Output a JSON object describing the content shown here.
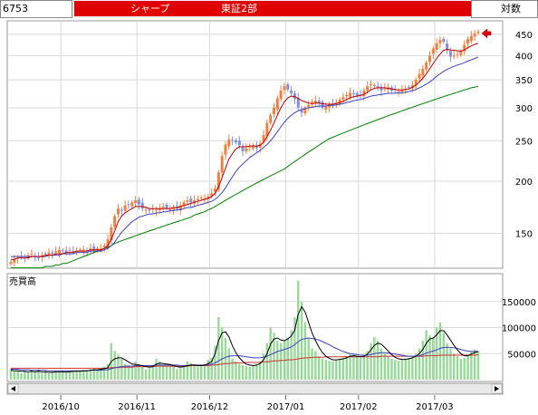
{
  "header": {
    "code": "6753",
    "name": "シャープ",
    "market": "東証2部",
    "scale": "対数"
  },
  "colors": {
    "banner": "#e00000",
    "ma_short": "#c00000",
    "ma_mid": "#4040c0",
    "ma_long": "#008000",
    "volume": "#98d898",
    "candle_up": "#f08040",
    "candle_down": "#8090e0",
    "vol_ma_long": "#cc3030"
  },
  "chart_data": [
    {
      "type": "candlestick",
      "scale": "log",
      "ylim": [
        125,
        480
      ],
      "yticks": [
        150,
        200,
        250,
        300,
        350,
        400,
        450
      ],
      "x_labels": [
        "2016/10",
        "2016/11",
        "2016/12",
        "2017/01",
        "2017/02",
        "2017/03"
      ],
      "legend": [],
      "close_series": [
        128,
        130,
        131,
        132,
        131,
        133,
        134,
        132,
        131,
        133,
        134,
        135,
        134,
        136,
        137,
        136,
        135,
        137,
        136,
        136,
        137,
        137,
        136,
        138,
        137,
        138,
        138,
        140,
        145,
        155,
        165,
        172,
        170,
        175,
        176,
        178,
        180,
        176,
        172,
        171,
        170,
        172,
        171,
        172,
        174,
        172,
        171,
        173,
        172,
        175,
        178,
        180,
        178,
        180,
        181,
        183,
        182,
        184,
        187,
        192,
        210,
        230,
        245,
        252,
        250,
        248,
        244,
        236,
        240,
        242,
        244,
        240,
        246,
        258,
        276,
        288,
        300,
        316,
        330,
        338,
        332,
        325,
        315,
        300,
        292,
        300,
        305,
        310,
        312,
        308,
        300,
        302,
        306,
        304,
        309,
        314,
        318,
        322,
        326,
        324,
        320,
        322,
        330,
        338,
        342,
        340,
        336,
        330,
        334,
        336,
        330,
        332,
        329,
        331,
        333,
        336,
        340,
        350,
        362,
        372,
        385,
        400,
        416,
        428,
        436,
        432,
        412,
        398,
        400,
        404,
        410,
        425,
        438,
        446,
        452,
        457
      ],
      "ma_short": [
        130,
        130,
        131,
        131,
        131,
        131,
        132,
        132,
        132,
        132,
        133,
        133,
        133,
        134,
        134,
        134,
        135,
        135,
        135,
        136,
        136,
        136,
        136,
        137,
        137,
        137,
        137,
        138,
        140,
        145,
        152,
        160,
        165,
        168,
        170,
        172,
        174,
        174,
        174,
        173,
        172,
        172,
        172,
        172,
        172,
        172,
        172,
        173,
        173,
        174,
        175,
        176,
        177,
        178,
        179,
        180,
        181,
        182,
        184,
        187,
        194,
        204,
        215,
        226,
        233,
        239,
        242,
        242,
        242,
        243,
        243,
        243,
        244,
        248,
        256,
        265,
        276,
        288,
        300,
        310,
        317,
        320,
        319,
        316,
        312,
        310,
        308,
        307,
        308,
        308,
        307,
        306,
        306,
        306,
        307,
        309,
        311,
        314,
        317,
        319,
        320,
        321,
        323,
        327,
        331,
        334,
        335,
        335,
        335,
        334,
        333,
        332,
        331,
        331,
        332,
        333,
        336,
        340,
        346,
        353,
        362,
        372,
        383,
        394,
        404,
        412,
        414,
        413,
        412,
        411,
        410,
        413,
        418,
        422,
        426,
        428
      ],
      "ma_mid": [
        132,
        132,
        132,
        132,
        132,
        132,
        132,
        132,
        132,
        132,
        132,
        133,
        133,
        133,
        133,
        134,
        134,
        134,
        134,
        135,
        135,
        135,
        135,
        136,
        136,
        136,
        136,
        137,
        138,
        140,
        143,
        147,
        151,
        154,
        157,
        160,
        162,
        164,
        165,
        166,
        167,
        167,
        168,
        168,
        169,
        169,
        170,
        170,
        171,
        171,
        172,
        173,
        173,
        174,
        175,
        176,
        177,
        178,
        179,
        181,
        184,
        188,
        193,
        199,
        205,
        211,
        216,
        220,
        224,
        228,
        231,
        234,
        237,
        241,
        245,
        250,
        256,
        263,
        270,
        277,
        283,
        288,
        292,
        295,
        297,
        299,
        300,
        301,
        302,
        303,
        303,
        303,
        304,
        304,
        305,
        306,
        307,
        309,
        310,
        312,
        313,
        314,
        316,
        318,
        320,
        321,
        322,
        323,
        324,
        325,
        325,
        325,
        326,
        326,
        327,
        328,
        330,
        332,
        335,
        338,
        342,
        346,
        351,
        357,
        362,
        367,
        371,
        374,
        377,
        380,
        382,
        385,
        388,
        391,
        394,
        397
      ],
      "ma_long": [
        124,
        124,
        124,
        124,
        124,
        124,
        124,
        124,
        124,
        124,
        125,
        125,
        125,
        126,
        126,
        127,
        127,
        128,
        129,
        130,
        131,
        132,
        133,
        134,
        135,
        136,
        137,
        138,
        139,
        140,
        142,
        143,
        144,
        145,
        146,
        147,
        148,
        149,
        150,
        151,
        152,
        153,
        154,
        155,
        156,
        157,
        158,
        159,
        160,
        161,
        162,
        163,
        164,
        166,
        167,
        168,
        169,
        171,
        172,
        174,
        176,
        178,
        180,
        182,
        184,
        186,
        188,
        190,
        192,
        194,
        196,
        198,
        200,
        202,
        204,
        206,
        208,
        210,
        212,
        214,
        217,
        220,
        223,
        226,
        229,
        232,
        235,
        238,
        241,
        244,
        247,
        250,
        253,
        255,
        257,
        259,
        261,
        263,
        265,
        267,
        269,
        271,
        273,
        275,
        277,
        279,
        281,
        283,
        285,
        287,
        289,
        291,
        293,
        295,
        297,
        299,
        301,
        303,
        305,
        307,
        309,
        311,
        313,
        315,
        317,
        319,
        321,
        323,
        325,
        327,
        329,
        331,
        333,
        335,
        336,
        338
      ]
    },
    {
      "type": "bar",
      "title": "売買高",
      "ylim": [
        0,
        200000
      ],
      "yticks": [
        50000,
        100000,
        150000
      ],
      "values": [
        20000,
        15000,
        18000,
        12000,
        16000,
        14000,
        18000,
        15000,
        20000,
        13000,
        17000,
        12000,
        15000,
        16000,
        14000,
        18000,
        16000,
        15000,
        17000,
        18000,
        16000,
        19000,
        18000,
        20000,
        21000,
        19000,
        22000,
        25000,
        30000,
        70000,
        55000,
        48000,
        40000,
        30000,
        28000,
        25000,
        35000,
        30000,
        28000,
        20000,
        22000,
        25000,
        40000,
        35000,
        28000,
        26000,
        30000,
        25000,
        20000,
        22000,
        28000,
        35000,
        32000,
        30000,
        25000,
        28000,
        30000,
        38000,
        42000,
        65000,
        120000,
        100000,
        80000,
        60000,
        40000,
        35000,
        30000,
        28000,
        26000,
        25000,
        27000,
        30000,
        35000,
        50000,
        70000,
        100000,
        90000,
        75000,
        70000,
        75000,
        80000,
        95000,
        120000,
        190000,
        150000,
        110000,
        80000,
        60000,
        55000,
        45000,
        40000,
        38000,
        36000,
        35000,
        38000,
        40000,
        42000,
        45000,
        50000,
        48000,
        44000,
        42000,
        45000,
        55000,
        70000,
        82000,
        75000,
        60000,
        50000,
        45000,
        40000,
        38000,
        36000,
        38000,
        40000,
        42000,
        45000,
        50000,
        60000,
        75000,
        95000,
        85000,
        80000,
        100000,
        110000,
        90000,
        70000,
        60000,
        50000,
        45000,
        40000,
        42000,
        48000,
        55000,
        58000,
        55000
      ],
      "ma_fast": [
        18000,
        17000,
        17000,
        16000,
        16000,
        15000,
        16000,
        15000,
        16000,
        15000,
        15000,
        14000,
        14000,
        15000,
        15000,
        15000,
        15000,
        15000,
        16000,
        16000,
        16000,
        17000,
        17000,
        18000,
        19000,
        19000,
        20000,
        21000,
        23000,
        35000,
        40000,
        42000,
        42000,
        38000,
        34000,
        30000,
        29000,
        28000,
        27000,
        25000,
        24000,
        25000,
        30000,
        32000,
        31000,
        30000,
        29000,
        27000,
        25000,
        24000,
        25000,
        27000,
        28000,
        28000,
        27000,
        27000,
        28000,
        31000,
        35000,
        50000,
        75000,
        90000,
        92000,
        82000,
        65000,
        52000,
        42000,
        35000,
        30000,
        28000,
        27000,
        28000,
        31000,
        38000,
        50000,
        68000,
        78000,
        80000,
        76000,
        75000,
        78000,
        84000,
        95000,
        125000,
        140000,
        130000,
        110000,
        90000,
        75000,
        62000,
        52000,
        45000,
        41000,
        38000,
        38000,
        39000,
        40000,
        42000,
        45000,
        46000,
        45000,
        44000,
        45000,
        49000,
        57000,
        66000,
        70000,
        68000,
        62000,
        55000,
        48000,
        43000,
        40000,
        39000,
        39000,
        40000,
        42000,
        45000,
        50000,
        58000,
        70000,
        78000,
        80000,
        86000,
        94000,
        94000,
        86000,
        76000,
        66000,
        57000,
        50000,
        46000,
        46000,
        49000,
        52000,
        54000
      ],
      "ma_mid": [
        20000,
        20000,
        20000,
        19000,
        19000,
        19000,
        18000,
        18000,
        18000,
        18000,
        18000,
        17000,
        17000,
        17000,
        17000,
        17000,
        17000,
        17000,
        17000,
        17000,
        17000,
        17000,
        17000,
        18000,
        18000,
        18000,
        18000,
        19000,
        19000,
        21000,
        23000,
        24000,
        25000,
        26000,
        26000,
        26000,
        27000,
        27000,
        27000,
        27000,
        27000,
        27000,
        28000,
        28000,
        28000,
        28000,
        28000,
        28000,
        28000,
        27000,
        27000,
        27000,
        28000,
        28000,
        28000,
        28000,
        28000,
        29000,
        30000,
        32000,
        36000,
        40000,
        43000,
        45000,
        46000,
        46000,
        46000,
        45000,
        44000,
        43000,
        42000,
        42000,
        42000,
        43000,
        45000,
        48000,
        51000,
        54000,
        56000,
        58000,
        60000,
        63000,
        67000,
        73000,
        77000,
        79000,
        80000,
        79000,
        78000,
        76000,
        73000,
        70000,
        67000,
        63000,
        60000,
        57000,
        54000,
        52000,
        50000,
        49000,
        48000,
        47000,
        47000,
        47000,
        48000,
        50000,
        51000,
        52000,
        52000,
        51000,
        50000,
        49000,
        48000,
        47000,
        46000,
        45000,
        45000,
        45000,
        46000,
        48000,
        51000,
        53000,
        55000,
        57000,
        60000,
        62000,
        62000,
        62000,
        61000,
        60000,
        58000,
        56000,
        55000,
        54000,
        54000,
        54000
      ],
      "ma_long": [
        22000,
        22000,
        22000,
        22000,
        22000,
        22000,
        22000,
        22000,
        22000,
        22000,
        22000,
        22000,
        22000,
        22000,
        22000,
        22000,
        22000,
        22000,
        22000,
        22000,
        22000,
        22000,
        22000,
        22000,
        22000,
        22000,
        22000,
        22000,
        22000,
        23000,
        23000,
        23000,
        24000,
        24000,
        24000,
        24000,
        25000,
        25000,
        25000,
        25000,
        25000,
        25000,
        26000,
        26000,
        26000,
        26000,
        26000,
        26000,
        26000,
        26000,
        26000,
        26000,
        27000,
        27000,
        27000,
        27000,
        27000,
        27000,
        28000,
        28000,
        29000,
        30000,
        31000,
        31000,
        32000,
        32000,
        32000,
        32000,
        33000,
        33000,
        33000,
        33000,
        33000,
        34000,
        34000,
        35000,
        36000,
        36000,
        37000,
        37000,
        38000,
        38000,
        39000,
        40000,
        41000,
        42000,
        42000,
        43000,
        43000,
        43000,
        43000,
        44000,
        44000,
        44000,
        44000,
        44000,
        44000,
        44000,
        44000,
        44000,
        44000,
        44000,
        44000,
        44000,
        44000,
        44000,
        44000,
        45000,
        45000,
        45000,
        45000,
        45000,
        45000,
        45000,
        45000,
        45000,
        45000,
        45000,
        45000,
        45000,
        46000,
        46000,
        46000,
        46000,
        47000,
        47000,
        47000,
        47000,
        47000,
        47000,
        47000,
        47000,
        47000,
        47000,
        47000,
        48000
      ]
    }
  ]
}
